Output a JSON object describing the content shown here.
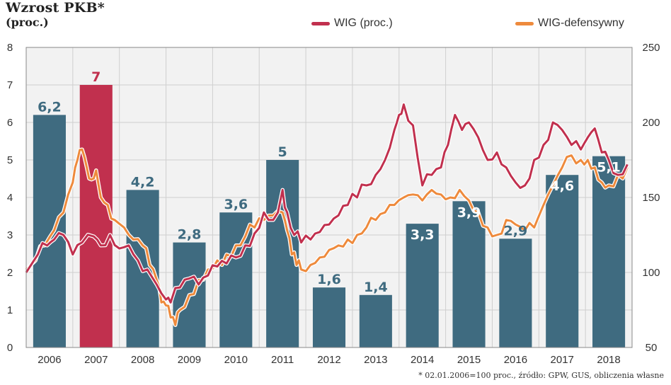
{
  "header": {
    "title": "Wzrost PKB*",
    "subtitle": "(proc.)"
  },
  "legend": [
    {
      "label": "WIG (proc.)",
      "color": "#c1304e"
    },
    {
      "label": "WIG-defensywny",
      "color": "#ee8a3c"
    }
  ],
  "footnote": "* 02.01.2006=100 proc., źródło: GPW, GUS, obliczenia własne",
  "colors": {
    "bar": "#3f6b80",
    "bar_highlight": "#c1304e",
    "label_dark": "#3f6b80",
    "label_light": "#ffffff",
    "grid": "#cfcfcf",
    "plot_background": "#f2f2f2"
  },
  "chart_data": {
    "type": "bar",
    "categories": [
      "2006",
      "2007",
      "2008",
      "2009",
      "2010",
      "2011",
      "2012",
      "2013",
      "2014",
      "2015",
      "2016",
      "2017",
      "2018"
    ],
    "values": [
      6.2,
      7,
      4.2,
      2.8,
      3.6,
      5,
      1.6,
      1.4,
      3.3,
      3.9,
      2.9,
      4.6,
      5.1
    ],
    "value_labels": [
      "6,2",
      "7",
      "4,2",
      "2,8",
      "3,6",
      "5",
      "1,6",
      "1,4",
      "3,3",
      "3,9",
      "2,9",
      "4,6",
      "5,1"
    ],
    "highlight_index": 1,
    "ylim": [
      0,
      8
    ],
    "y_ticks": [
      0,
      1,
      2,
      3,
      4,
      5,
      6,
      7,
      8
    ],
    "y2lim": [
      50,
      250
    ],
    "y2_ticks": [
      50,
      100,
      150,
      200,
      250
    ],
    "grid": true,
    "series": [
      {
        "name": "WIG (proc.)",
        "axis": "right",
        "color": "#c1304e",
        "x": [
          2006.0,
          2006.25,
          2006.45,
          2006.6,
          2006.8,
          2007.0,
          2007.2,
          2007.45,
          2007.6,
          2007.8,
          2008.0,
          2008.2,
          2008.4,
          2008.6,
          2008.8,
          2009.0,
          2009.1,
          2009.3,
          2009.5,
          2009.7,
          2009.9,
          2010.1,
          2010.3,
          2010.5,
          2010.7,
          2010.9,
          2011.1,
          2011.3,
          2011.5,
          2011.6,
          2011.75,
          2011.9,
          2012.1,
          2012.3,
          2012.5,
          2012.7,
          2012.9,
          2013.1,
          2013.3,
          2013.5,
          2013.7,
          2013.9,
          2014.0,
          2014.1,
          2014.3,
          2014.5,
          2014.7,
          2014.9,
          2015.05,
          2015.2,
          2015.35,
          2015.5,
          2015.7,
          2015.9,
          2016.1,
          2016.3,
          2016.5,
          2016.7,
          2016.9,
          2017.1,
          2017.3,
          2017.5,
          2017.7,
          2017.9,
          2018.05,
          2018.2,
          2018.35,
          2018.5,
          2018.7,
          2018.9
        ],
        "y": [
          100,
          112,
          118,
          122,
          125,
          112,
          120,
          124,
          118,
          125,
          116,
          118,
          108,
          102,
          92,
          82,
          80,
          90,
          96,
          92,
          98,
          104,
          106,
          110,
          118,
          126,
          140,
          135,
          155,
          140,
          125,
          120,
          122,
          127,
          132,
          138,
          145,
          150,
          158,
          165,
          175,
          195,
          205,
          212,
          198,
          158,
          165,
          170,
          185,
          205,
          195,
          200,
          190,
          175,
          180,
          170,
          160,
          158,
          175,
          185,
          200,
          195,
          185,
          182,
          190,
          196,
          180,
          175,
          165,
          172
        ]
      },
      {
        "name": "WIG-defensywny",
        "axis": "right",
        "color": "#ee8a3c",
        "x": [
          2006.0,
          2006.2,
          2006.4,
          2006.6,
          2006.8,
          2007.0,
          2007.1,
          2007.2,
          2007.3,
          2007.4,
          2007.5,
          2007.6,
          2007.75,
          2007.9,
          2008.1,
          2008.3,
          2008.5,
          2008.65,
          2008.8,
          2008.9,
          2009.0,
          2009.1,
          2009.2,
          2009.3,
          2009.5,
          2009.7,
          2009.9,
          2010.1,
          2010.3,
          2010.5,
          2010.7,
          2010.9,
          2011.1,
          2011.3,
          2011.5,
          2011.6,
          2011.7,
          2011.8,
          2011.9,
          2012.1,
          2012.3,
          2012.5,
          2012.7,
          2012.9,
          2013.1,
          2013.3,
          2013.5,
          2013.7,
          2013.9,
          2014.1,
          2014.3,
          2014.5,
          2014.7,
          2014.9,
          2015.1,
          2015.3,
          2015.5,
          2015.7,
          2015.9,
          2016.1,
          2016.3,
          2016.5,
          2016.7,
          2016.9,
          2017.1,
          2017.3,
          2017.5,
          2017.7,
          2017.9,
          2018.05,
          2018.2,
          2018.35,
          2018.5,
          2018.7,
          2018.9
        ],
        "y": [
          102,
          108,
          118,
          128,
          140,
          160,
          175,
          182,
          170,
          162,
          168,
          150,
          145,
          135,
          130,
          122,
          118,
          105,
          95,
          80,
          78,
          70,
          65,
          75,
          85,
          95,
          102,
          108,
          112,
          118,
          124,
          130,
          135,
          138,
          140,
          128,
          112,
          105,
          102,
          105,
          110,
          115,
          118,
          122,
          125,
          130,
          135,
          140,
          145,
          150,
          152,
          148,
          155,
          152,
          150,
          155,
          148,
          140,
          130,
          125,
          135,
          132,
          128,
          130,
          145,
          158,
          170,
          178,
          175,
          175,
          170,
          160,
          158,
          165,
          170
        ]
      }
    ]
  }
}
